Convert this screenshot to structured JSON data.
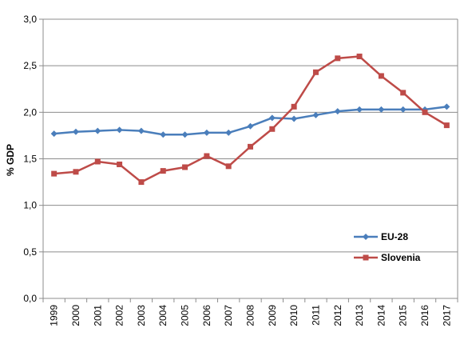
{
  "chart_data": {
    "type": "line",
    "title": "",
    "xlabel": "",
    "ylabel": "% GDP",
    "ylim": [
      0,
      3
    ],
    "yticks": [
      "0,0",
      "0,5",
      "1,0",
      "1,5",
      "2,0",
      "2,5",
      "3,0"
    ],
    "grid": true,
    "legend_position": "bottom-right",
    "categories": [
      "1999",
      "2000",
      "2001",
      "2002",
      "2003",
      "2004",
      "2005",
      "2006",
      "2007",
      "2008",
      "2009",
      "2010",
      "2011",
      "2012",
      "2013",
      "2014",
      "2015",
      "2016",
      "2017"
    ],
    "series": [
      {
        "name": "EU-28",
        "color": "#4a7ebb",
        "marker": "diamond",
        "values": [
          1.77,
          1.79,
          1.8,
          1.81,
          1.8,
          1.76,
          1.76,
          1.78,
          1.78,
          1.85,
          1.94,
          1.93,
          1.97,
          2.01,
          2.03,
          2.03,
          2.03,
          2.03,
          2.06
        ]
      },
      {
        "name": "Slovenia",
        "color": "#be4b48",
        "marker": "square",
        "values": [
          1.34,
          1.36,
          1.47,
          1.44,
          1.25,
          1.37,
          1.41,
          1.53,
          1.42,
          1.63,
          1.82,
          2.06,
          2.43,
          2.58,
          2.6,
          2.39,
          2.21,
          2.0,
          1.86
        ]
      }
    ]
  }
}
